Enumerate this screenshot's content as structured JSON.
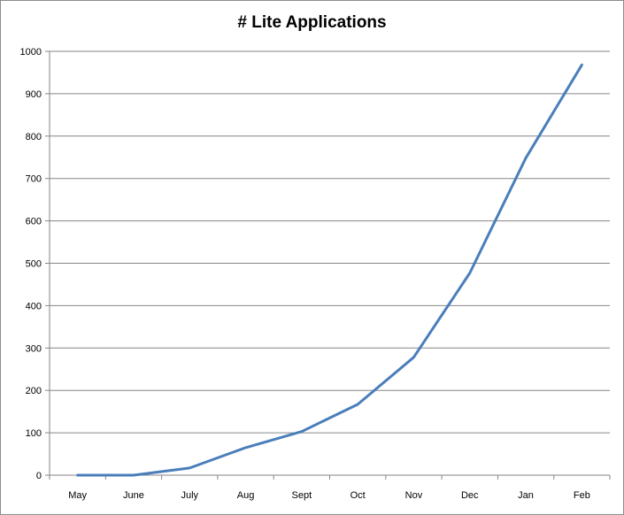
{
  "chart_data": {
    "type": "line",
    "title": "# Lite Applications",
    "xlabel": "",
    "ylabel": "",
    "categories": [
      "May",
      "June",
      "July",
      "Aug",
      "Sept",
      "Oct",
      "Nov",
      "Dec",
      "Jan",
      "Feb"
    ],
    "series": [
      {
        "values": [
          0,
          0,
          17,
          65,
          103,
          167,
          278,
          477,
          748,
          968
        ],
        "color": "#4a7ebb"
      }
    ],
    "ylim": [
      0,
      1000
    ],
    "yticks": [
      0,
      100,
      200,
      300,
      400,
      500,
      600,
      700,
      800,
      900,
      1000
    ],
    "grid": true,
    "legend": "none"
  }
}
